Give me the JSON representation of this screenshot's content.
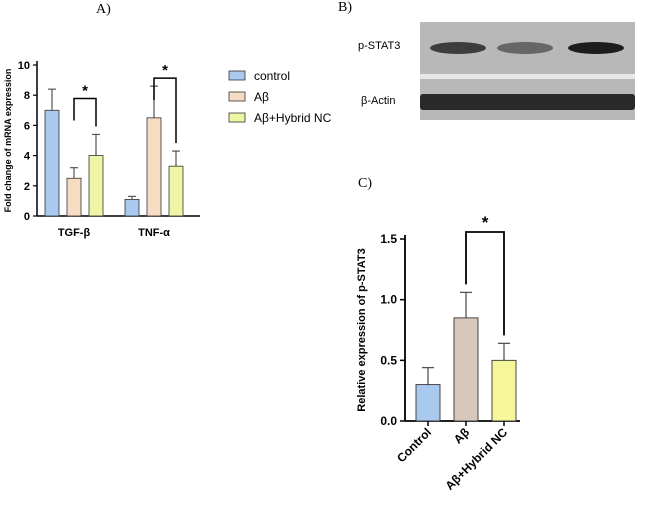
{
  "panels": {
    "a": "A)",
    "b": "B)",
    "c": "C)"
  },
  "colors": {
    "control": "#a9c9ef",
    "abeta": "#f7dcc4",
    "hybrid": "#eef6a5",
    "c_abeta": "#d8c8bc",
    "c_hybrid": "#f5f79a",
    "bar_edge": "#333333",
    "blot_bg": "#8a8a8a"
  },
  "chart_data": [
    {
      "type": "bar",
      "ylabel": "Fold change of mRNA expression",
      "ylim": [
        0,
        10
      ],
      "yticks": [
        "0",
        "2",
        "4",
        "6",
        "8",
        "10"
      ],
      "categories": [
        "TGF-β",
        "TNF-α"
      ],
      "legend_position": "right",
      "series": [
        {
          "name": "control",
          "values": [
            7.0,
            1.1
          ],
          "errors": [
            1.4,
            0.2
          ]
        },
        {
          "name": "Aβ",
          "values": [
            2.5,
            6.5
          ],
          "errors": [
            0.7,
            2.1
          ]
        },
        {
          "name": "Aβ+Hybrid NC",
          "values": [
            4.0,
            3.3
          ],
          "errors": [
            1.4,
            1.0
          ]
        }
      ],
      "significance": [
        {
          "text": "*",
          "group": "TGF-β"
        },
        {
          "text": "*",
          "group": "TNF-α"
        }
      ]
    },
    {
      "type": "bar",
      "ylabel": "Relative expression of p-STAT3",
      "ylim": [
        0,
        1.5
      ],
      "yticks": [
        "0.0",
        "0.5",
        "1.0",
        "1.5"
      ],
      "categories": [
        "Control",
        "Aβ",
        "Aβ+Hybrid NC"
      ],
      "values": [
        0.3,
        0.85,
        0.5
      ],
      "errors": [
        0.14,
        0.21,
        0.14
      ],
      "significance": [
        {
          "text": "*",
          "between": [
            "Aβ",
            "Aβ+Hybrid NC"
          ]
        }
      ]
    }
  ],
  "blot": {
    "rows": [
      {
        "label": "p-STAT3",
        "intensities": [
          0.75,
          0.5,
          0.95
        ]
      },
      {
        "label": "β-Actin",
        "intensities": [
          0.9,
          0.9,
          0.9
        ]
      }
    ]
  }
}
